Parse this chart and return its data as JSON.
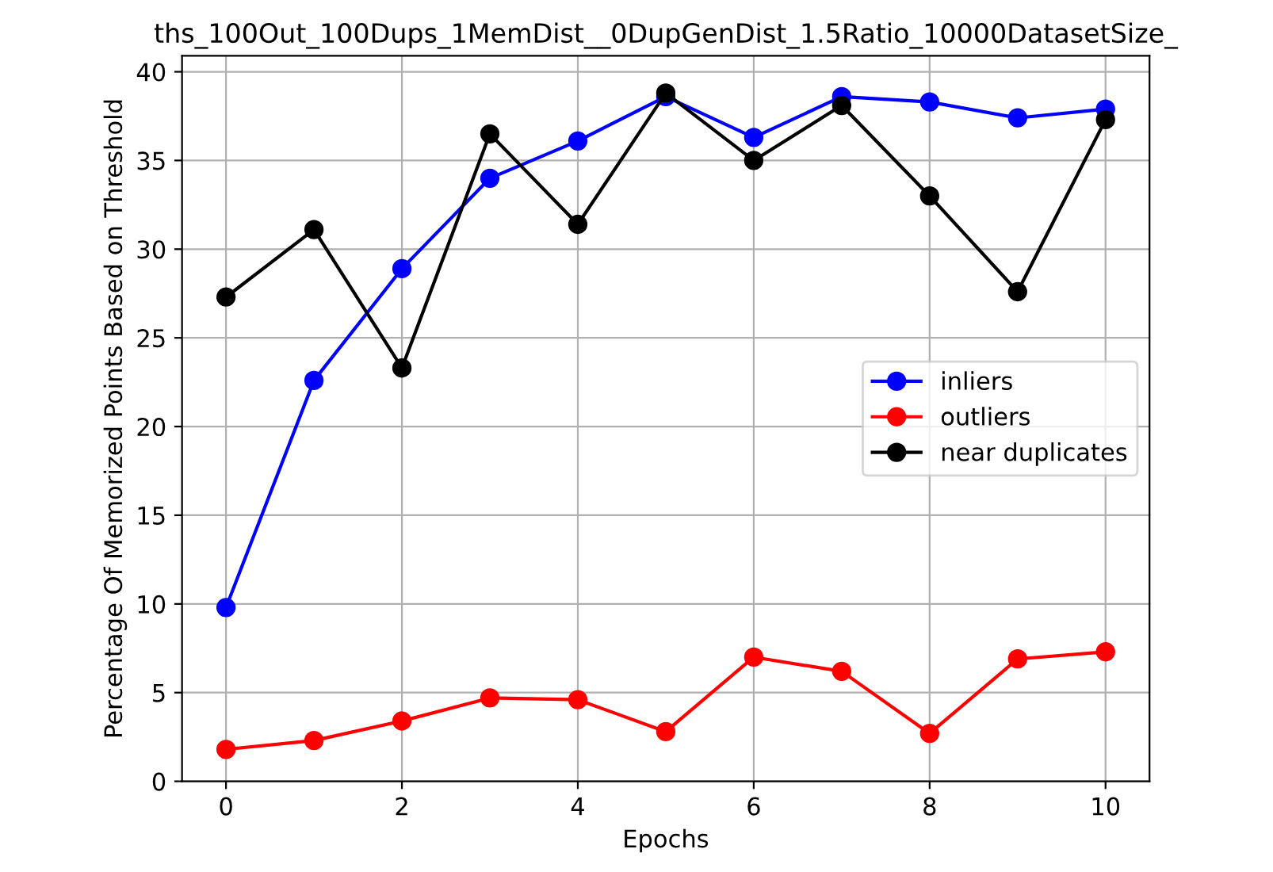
{
  "chart_data": {
    "type": "line",
    "title": "ths_100Out_100Dups_1MemDist__0DupGenDist_1.5Ratio_10000DatasetSize_",
    "xlabel": "Epochs",
    "ylabel": "Percentage Of Memorized Points Based on Threshold",
    "x": [
      0,
      1,
      2,
      3,
      4,
      5,
      6,
      7,
      8,
      9,
      10
    ],
    "series": [
      {
        "name": "inliers",
        "color": "#0000ff",
        "values": [
          9.8,
          22.6,
          28.9,
          34.0,
          36.1,
          38.6,
          36.3,
          38.6,
          38.3,
          37.4,
          37.9
        ]
      },
      {
        "name": "outliers",
        "color": "#ff0000",
        "values": [
          1.8,
          2.3,
          3.4,
          4.7,
          4.6,
          2.8,
          7.0,
          6.2,
          2.7,
          6.9,
          7.3
        ]
      },
      {
        "name": "near duplicates",
        "color": "#000000",
        "values": [
          27.3,
          31.1,
          23.3,
          36.5,
          31.4,
          38.8,
          35.0,
          38.1,
          33.0,
          27.6,
          37.3
        ]
      }
    ],
    "xlim": [
      -0.5,
      10.5
    ],
    "xticks": [
      0,
      2,
      4,
      6,
      8,
      10
    ],
    "ylim": [
      0,
      40.9
    ],
    "yticks": [
      0,
      5,
      10,
      15,
      20,
      25,
      30,
      35,
      40
    ],
    "grid": true,
    "legend": "center right",
    "marker": "circle",
    "line_style": "solid"
  }
}
